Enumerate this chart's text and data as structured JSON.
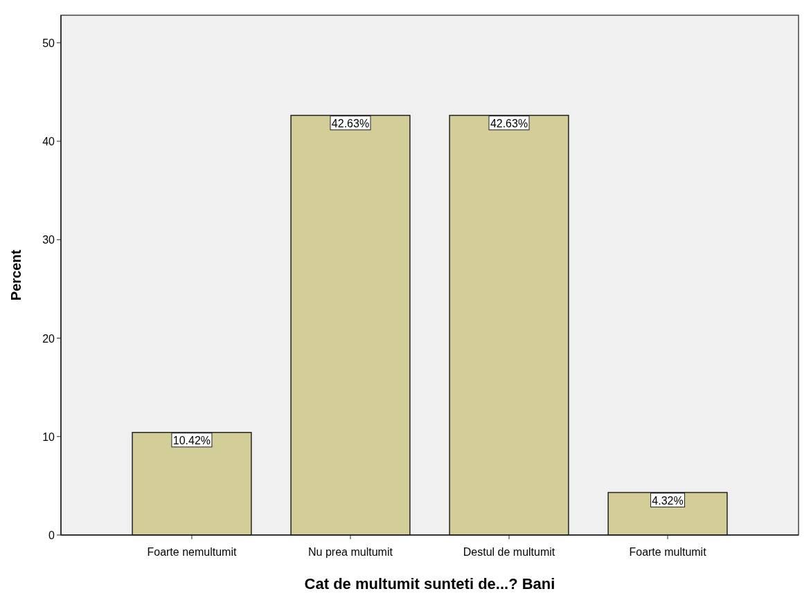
{
  "chart_data": {
    "type": "bar",
    "xlabel": "Cat de multumit sunteti de...? Bani",
    "ylabel": "Percent",
    "categories": [
      "Foarte nemultumit",
      "Nu prea multumit",
      "Destul de multumit",
      "Foarte multumit"
    ],
    "values": [
      10.42,
      42.63,
      42.63,
      4.32
    ],
    "value_labels": [
      "10.42%",
      "42.63%",
      "42.63%",
      "4.32%"
    ],
    "color": "#d3ce97",
    "ylim": [
      0,
      52.8
    ],
    "yticks": [
      0,
      10,
      20,
      30,
      40,
      50
    ],
    "grid": false
  }
}
